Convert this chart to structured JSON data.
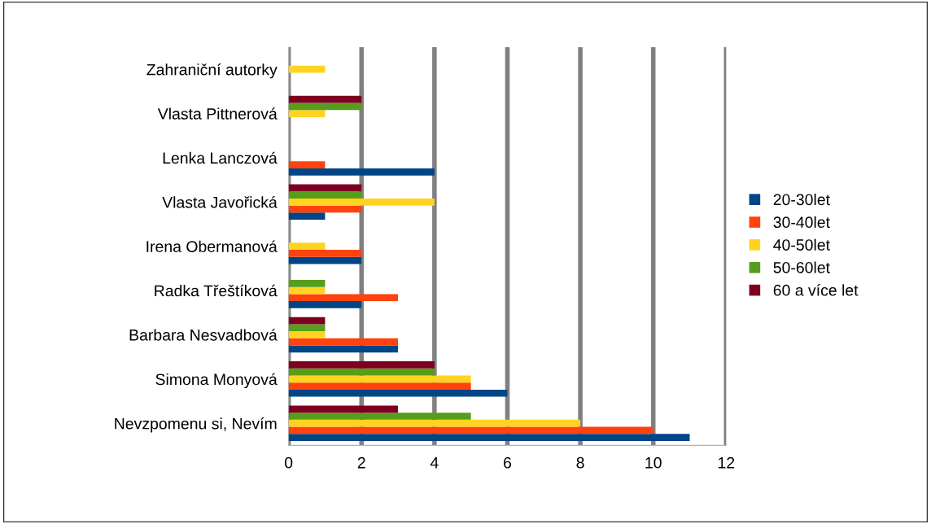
{
  "chart_data": {
    "type": "bar",
    "orientation": "horizontal",
    "categories": [
      "Zahraniční autorky",
      "Vlasta Pittnerová",
      "Lenka Lanczová",
      "Vlasta Javořická",
      "Irena Obermanová",
      "Radka Třeštíková",
      "Barbara Nesvadbová",
      "Simona Monyová",
      "Nevzpomenu si, Nevím"
    ],
    "series": [
      {
        "name": "20-30let",
        "color": "#004586",
        "values": [
          0,
          0,
          4,
          1,
          2,
          2,
          3,
          6,
          11
        ]
      },
      {
        "name": "30-40let",
        "color": "#ff420e",
        "values": [
          0,
          0,
          1,
          2,
          2,
          3,
          3,
          5,
          10
        ]
      },
      {
        "name": "40-50let",
        "color": "#ffd320",
        "values": [
          1,
          1,
          0,
          4,
          1,
          1,
          1,
          5,
          8
        ]
      },
      {
        "name": "50-60let",
        "color": "#579d1c",
        "values": [
          0,
          2,
          0,
          2,
          0,
          1,
          1,
          4,
          5
        ]
      },
      {
        "name": "60 a více let",
        "color": "#7e0021",
        "values": [
          0,
          2,
          0,
          2,
          0,
          0,
          1,
          4,
          3
        ]
      }
    ],
    "xlim": [
      0,
      12
    ],
    "xticks": [
      0,
      2,
      4,
      6,
      8,
      10,
      12
    ],
    "grid": "x",
    "legend": "right"
  }
}
